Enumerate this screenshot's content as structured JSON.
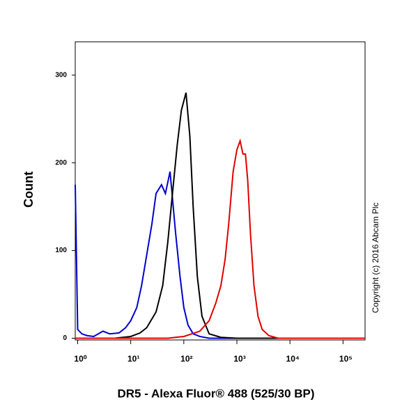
{
  "chart_data": {
    "type": "line",
    "xlabel": "DR5 - Alexa Fluor® 488 (525/30 BP)",
    "ylabel": "Count",
    "annotation": "Copyright (c) 2016 Abcam Plc",
    "xscale": "log",
    "xlim": [
      0.9,
      260000
    ],
    "ylim": [
      -2,
      338
    ],
    "xticks": [
      {
        "value": 1,
        "label": "10⁰"
      },
      {
        "value": 10,
        "label": "10¹"
      },
      {
        "value": 100,
        "label": "10²"
      },
      {
        "value": 1000,
        "label": "10³"
      },
      {
        "value": 10000,
        "label": "10⁴"
      },
      {
        "value": 100000,
        "label": "10⁵"
      }
    ],
    "yticks": [
      0,
      100,
      200,
      300
    ],
    "series": [
      {
        "color": "#0000cc",
        "x": [
          0.9,
          1,
          1.2,
          1.5,
          2,
          3,
          4,
          6,
          8,
          10,
          13,
          16,
          20,
          25,
          30,
          38,
          45,
          55,
          60,
          70,
          85,
          100,
          120,
          150,
          200,
          300,
          260000
        ],
        "values": [
          175,
          10,
          5,
          3,
          2,
          8,
          5,
          6,
          12,
          20,
          35,
          60,
          95,
          130,
          165,
          175,
          165,
          190,
          165,
          120,
          70,
          35,
          15,
          5,
          2,
          0,
          0
        ]
      },
      {
        "color": "#000000",
        "x": [
          5,
          10,
          15,
          20,
          30,
          40,
          50,
          60,
          75,
          90,
          110,
          130,
          150,
          180,
          220,
          300,
          500,
          1000,
          260000
        ],
        "values": [
          0,
          2,
          6,
          12,
          30,
          60,
          110,
          160,
          220,
          260,
          280,
          230,
          150,
          70,
          25,
          5,
          1,
          0,
          0
        ]
      },
      {
        "color": "#e00000",
        "x": [
          0.9,
          50,
          100,
          200,
          300,
          400,
          500,
          600,
          700,
          850,
          1000,
          1150,
          1300,
          1450,
          1600,
          1800,
          2100,
          2500,
          3000,
          4000,
          6000,
          260000
        ],
        "values": [
          0,
          0,
          2,
          8,
          20,
          40,
          60,
          90,
          130,
          190,
          215,
          225,
          210,
          210,
          180,
          120,
          60,
          25,
          10,
          3,
          0,
          0
        ]
      }
    ]
  }
}
